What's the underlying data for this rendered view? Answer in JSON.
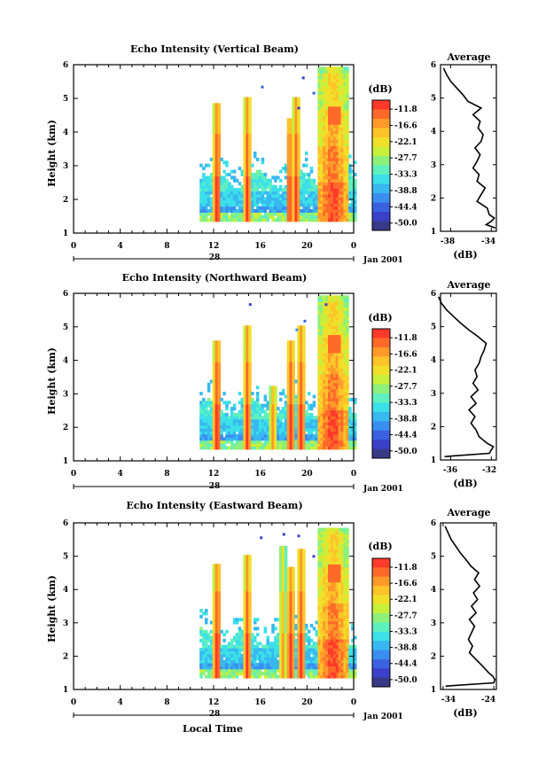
{
  "colorbar": {
    "unit": "(dB)",
    "labels": [
      "-11.8",
      "-16.6",
      "-22.1",
      "-27.7",
      "-33.3",
      "-38.8",
      "-44.4",
      "-50.0"
    ],
    "colors": [
      "#ff3a2a",
      "#ff6a2a",
      "#ff9a2a",
      "#ffc42a",
      "#f0e02a",
      "#c8f03a",
      "#8cf07a",
      "#5ff0c0",
      "#3ce0e8",
      "#38b8f0",
      "#3a8ef0",
      "#3a62e0",
      "#3a40c8",
      "#383a88"
    ]
  },
  "x_ticks": [
    "0",
    "4",
    "8",
    "12",
    "16",
    "20",
    "0"
  ],
  "date_day": "28",
  "month_year": "Jan 2001",
  "xlabel_bottom": "Local Time",
  "panels": [
    {
      "title": "Echo Intensity (Vertical Beam)",
      "ylabel": "Height (km)",
      "avg_title": "Average",
      "avg_xticks": [
        "-38",
        "-34"
      ],
      "avg_xlabel": "(dB)",
      "plot_ys": [
        73,
        263
      ],
      "avg_ys": [
        73,
        261
      ]
    },
    {
      "title": "Echo Intensity (Northward Beam)",
      "ylabel": "Height (km)",
      "avg_title": "Average",
      "avg_xticks": [
        "-36",
        "-32"
      ],
      "avg_xlabel": "(dB)",
      "plot_ys": [
        331,
        520
      ],
      "avg_ys": [
        331,
        519
      ]
    },
    {
      "title": "Echo Intensity (Eastward Beam)",
      "ylabel": "Height (km)",
      "avg_title": "Average",
      "avg_xticks": [
        "-34",
        "-24"
      ],
      "avg_xlabel": "(dB)",
      "plot_ys": [
        590,
        778
      ],
      "avg_ys": [
        590,
        778
      ]
    }
  ],
  "chart_data": [
    {
      "type": "heatmap",
      "title": "Echo Intensity (Vertical Beam)",
      "ylabel": "Height (km)",
      "xlabel": "Local Time",
      "x_range_hours": [
        0,
        24
      ],
      "ylim_km": [
        1,
        6
      ],
      "yticks": [
        1,
        2,
        3,
        4,
        5,
        6
      ],
      "colorbar_dB": [
        -11.8,
        -16.6,
        -22.1,
        -27.7,
        -33.3,
        -38.8,
        -44.4,
        -50.0
      ],
      "data_start_hour": 10.8,
      "convective_cells": [
        {
          "time_h": 12.2,
          "top_km": 4.8,
          "core": "high"
        },
        {
          "time_h": 14.8,
          "top_km": 5.0,
          "core": "high"
        },
        {
          "time_h": 18.4,
          "top_km": 4.4,
          "core": "high"
        },
        {
          "time_h": 19.0,
          "top_km": 5.0,
          "core": "high"
        },
        {
          "time_h": 22.2,
          "top_km": 5.9,
          "core": "high"
        }
      ],
      "average_profile": {
        "xlim_dB": [
          -39,
          -33.5
        ],
        "xticks": [
          -38,
          -34
        ],
        "heights_km": [
          1.1,
          1.2,
          1.3,
          1.4,
          1.5,
          1.7,
          1.9,
          2.1,
          2.3,
          2.5,
          2.7,
          2.9,
          3.1,
          3.3,
          3.5,
          3.7,
          3.9,
          4.1,
          4.3,
          4.5,
          4.7,
          4.9,
          5.1,
          5.3,
          5.5,
          5.7,
          5.9
        ],
        "values_dB": [
          -33.6,
          -34.5,
          -34.0,
          -33.7,
          -34.2,
          -34.4,
          -35.4,
          -35.0,
          -34.6,
          -35.4,
          -35.2,
          -35.8,
          -35.4,
          -35.1,
          -35.6,
          -35.0,
          -34.8,
          -35.3,
          -35.1,
          -35.8,
          -35.0,
          -36.3,
          -36.8,
          -37.4,
          -38.0,
          -38.4,
          -38.7
        ]
      }
    },
    {
      "type": "heatmap",
      "title": "Echo Intensity (Northward Beam)",
      "ylabel": "Height (km)",
      "xlabel": "Local Time",
      "x_range_hours": [
        0,
        24
      ],
      "ylim_km": [
        1,
        6
      ],
      "yticks": [
        1,
        2,
        3,
        4,
        5,
        6
      ],
      "colorbar_dB": [
        -11.8,
        -16.6,
        -22.1,
        -27.7,
        -33.3,
        -38.8,
        -44.4,
        -50.0
      ],
      "data_start_hour": 10.8,
      "convective_cells": [
        {
          "time_h": 12.2,
          "top_km": 4.5,
          "core": "high"
        },
        {
          "time_h": 14.8,
          "top_km": 5.0,
          "core": "high"
        },
        {
          "time_h": 17.0,
          "top_km": 3.2,
          "core": "mid"
        },
        {
          "time_h": 18.5,
          "top_km": 4.5,
          "core": "high"
        },
        {
          "time_h": 19.4,
          "top_km": 5.0,
          "core": "high"
        },
        {
          "time_h": 22.2,
          "top_km": 5.9,
          "core": "high"
        }
      ],
      "average_profile": {
        "xlim_dB": [
          -37,
          -31.5
        ],
        "xticks": [
          -36,
          -32
        ],
        "heights_km": [
          1.1,
          1.2,
          1.3,
          1.4,
          1.5,
          1.7,
          1.9,
          2.1,
          2.3,
          2.5,
          2.7,
          2.9,
          3.1,
          3.3,
          3.5,
          3.7,
          3.9,
          4.1,
          4.3,
          4.5,
          4.7,
          4.9,
          5.1,
          5.3,
          5.5,
          5.7,
          5.9
        ],
        "values_dB": [
          -36.6,
          -32.2,
          -32.0,
          -31.8,
          -32.4,
          -33.2,
          -33.5,
          -34.0,
          -33.6,
          -34.2,
          -33.5,
          -34.0,
          -33.3,
          -33.8,
          -33.4,
          -33.6,
          -33.2,
          -33.0,
          -32.7,
          -32.5,
          -33.3,
          -34.2,
          -35.0,
          -35.7,
          -36.4,
          -36.9,
          -37.2
        ]
      }
    },
    {
      "type": "heatmap",
      "title": "Echo Intensity (Eastward Beam)",
      "ylabel": "Height (km)",
      "xlabel": "Local Time",
      "x_range_hours": [
        0,
        24
      ],
      "ylim_km": [
        1,
        6
      ],
      "yticks": [
        1,
        2,
        3,
        4,
        5,
        6
      ],
      "colorbar_dB": [
        -11.8,
        -16.6,
        -22.1,
        -27.7,
        -33.3,
        -38.8,
        -44.4,
        -50.0
      ],
      "data_start_hour": 10.8,
      "convective_cells": [
        {
          "time_h": 12.2,
          "top_km": 4.7,
          "core": "high"
        },
        {
          "time_h": 14.8,
          "top_km": 5.0,
          "core": "high"
        },
        {
          "time_h": 17.8,
          "top_km": 5.3,
          "core": "mid"
        },
        {
          "time_h": 18.5,
          "top_km": 4.6,
          "core": "high"
        },
        {
          "time_h": 19.4,
          "top_km": 5.2,
          "core": "high"
        },
        {
          "time_h": 22.2,
          "top_km": 5.8,
          "core": "high"
        }
      ],
      "average_profile": {
        "xlim_dB": [
          -34.5,
          -23.5
        ],
        "xticks": [
          -34,
          -24
        ],
        "heights_km": [
          1.1,
          1.2,
          1.3,
          1.4,
          1.5,
          1.7,
          1.9,
          2.1,
          2.3,
          2.5,
          2.7,
          2.9,
          3.1,
          3.3,
          3.5,
          3.7,
          3.9,
          4.1,
          4.3,
          4.5,
          4.7,
          4.9,
          5.1,
          5.3,
          5.5,
          5.7,
          5.9
        ],
        "values_dB": [
          -33.5,
          -24.0,
          -23.8,
          -24.2,
          -25.0,
          -26.2,
          -27.5,
          -28.8,
          -28.2,
          -29.0,
          -28.4,
          -27.8,
          -28.8,
          -27.5,
          -28.4,
          -27.2,
          -28.0,
          -26.8,
          -27.8,
          -27.0,
          -28.5,
          -29.5,
          -30.6,
          -31.5,
          -32.4,
          -33.0,
          -33.6
        ]
      }
    }
  ]
}
